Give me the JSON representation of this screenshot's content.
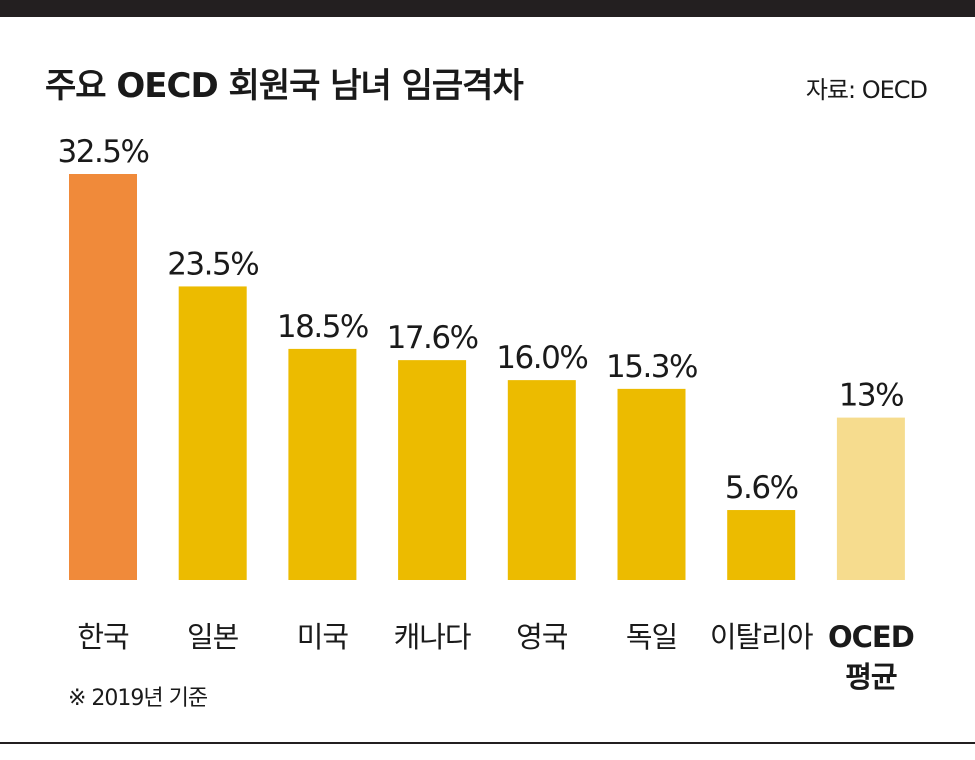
{
  "title": "주요 OECD 회원국 남녀 임금격차",
  "source": "자료: OECD",
  "footnote": "※ 2019년 기준",
  "colors": {
    "highlight": "#f08a3a",
    "bar": "#ecbb00",
    "average": "#f6dc8e"
  },
  "chart_data": {
    "type": "bar",
    "title": "주요 OECD 회원국 남녀 임금격차",
    "categories": [
      "한국",
      "일본",
      "미국",
      "캐나다",
      "영국",
      "독일",
      "이탈리아",
      "OCED 평균"
    ],
    "values": [
      32.5,
      23.5,
      18.5,
      17.6,
      16.0,
      15.3,
      5.6,
      13
    ],
    "value_labels": [
      "32.5%",
      "23.5%",
      "18.5%",
      "17.6%",
      "16.0%",
      "15.3%",
      "5.6%",
      "13%"
    ],
    "highlight_category": "한국",
    "average_category": "OCED 평균",
    "ylim": [
      0,
      32.5
    ],
    "grid": false,
    "legend": "none",
    "xlabel": "",
    "ylabel": ""
  }
}
